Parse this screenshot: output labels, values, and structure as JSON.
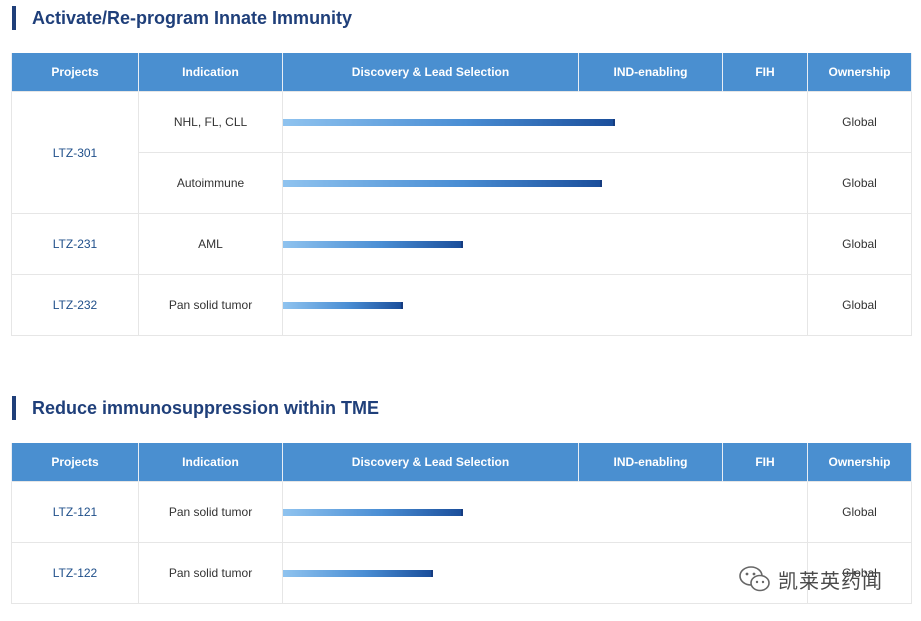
{
  "sections": [
    {
      "title": "Activate/Re-program Innate Immunity",
      "headers": [
        "Projects",
        "Indication",
        "Discovery & Lead Selection",
        "IND-enabling",
        "FIH",
        "Ownership"
      ],
      "rows": [
        {
          "project": "LTZ-301",
          "indication": "NHL, FL, CLL",
          "progress": 0.633,
          "ownership": "Global"
        },
        {
          "project": "",
          "indication": "Autoimmune",
          "progress": 0.609,
          "ownership": "Global"
        },
        {
          "project": "LTZ-231",
          "indication": "AML",
          "progress": 0.344,
          "ownership": "Global"
        },
        {
          "project": "LTZ-232",
          "indication": "Pan solid tumor",
          "progress": 0.229,
          "ownership": "Global"
        }
      ]
    },
    {
      "title": "Reduce immunosuppression within TME",
      "headers": [
        "Projects",
        "Indication",
        "Discovery & Lead Selection",
        "IND-enabling",
        "FIH",
        "Ownership"
      ],
      "rows": [
        {
          "project": "LTZ-121",
          "indication": "Pan solid tumor",
          "progress": 0.344,
          "ownership": "Global"
        },
        {
          "project": "LTZ-122",
          "indication": "Pan solid tumor",
          "progress": 0.286,
          "ownership": "Global"
        }
      ]
    }
  ],
  "watermark": {
    "text": "凯莱英药闻",
    "icon": "wechat-icon"
  },
  "colors": {
    "header_bg": "#4a8fd0",
    "title": "#1f3f7a",
    "bar_dark": "#1b4f9c",
    "bar_light": "#8fc3ef"
  }
}
